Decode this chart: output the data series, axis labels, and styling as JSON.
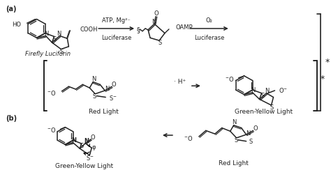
{
  "background_color": "#ffffff",
  "fig_width": 4.74,
  "fig_height": 2.44,
  "dpi": 100,
  "label_a": "(a)",
  "label_b": "(b)",
  "firefly_label": "Firefly Luciforin",
  "red_light_label": "Red Light",
  "green_yellow_label1": "Green-Yellow Light",
  "green_yellow_label2": "Green-Yellow Light",
  "red_light_label2": "Red Light",
  "atp_label": "ATP, Mg²⁻",
  "luciferase1": "Luciferase",
  "luciferase2": "Luciferase",
  "o2_label": "O₂",
  "oamp_label": "OAMP",
  "cooh_label": "COOH",
  "hplus": "· H⁺",
  "text_color": "#222222",
  "line_color": "#222222"
}
